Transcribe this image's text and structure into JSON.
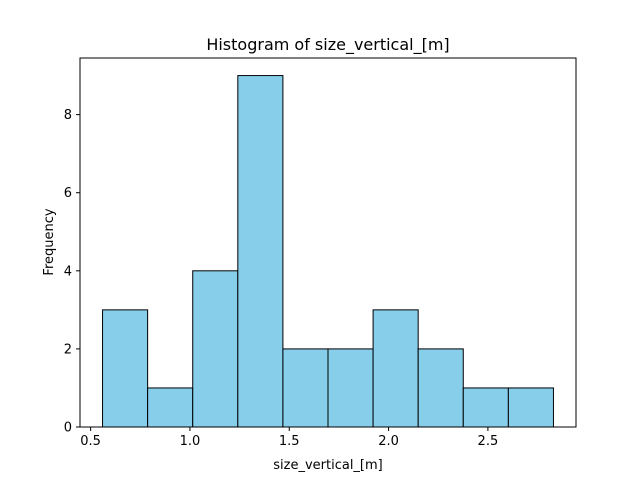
{
  "chart_data": {
    "type": "bar",
    "title": "Histogram of size_vertical_[m]",
    "xlabel": "size_vertical_[m]",
    "ylabel": "Frequency",
    "bin_edges": [
      0.56,
      0.787,
      1.014,
      1.241,
      1.468,
      1.695,
      1.922,
      2.149,
      2.376,
      2.603,
      2.83
    ],
    "values": [
      3,
      1,
      4,
      9,
      2,
      2,
      3,
      2,
      1,
      1
    ],
    "xlim": [
      0.4465,
      2.9435
    ],
    "ylim": [
      0,
      9.45
    ],
    "xticks": [
      0.5,
      1.0,
      1.5,
      2.0,
      2.5
    ],
    "xtick_labels": [
      "0.5",
      "1.0",
      "1.5",
      "2.0",
      "2.5"
    ],
    "yticks": [
      0,
      2,
      4,
      6,
      8
    ],
    "ytick_labels": [
      "0",
      "2",
      "4",
      "6",
      "8"
    ],
    "grid": false,
    "bar_color": "#87CEEB",
    "edge_color": "#000000"
  }
}
